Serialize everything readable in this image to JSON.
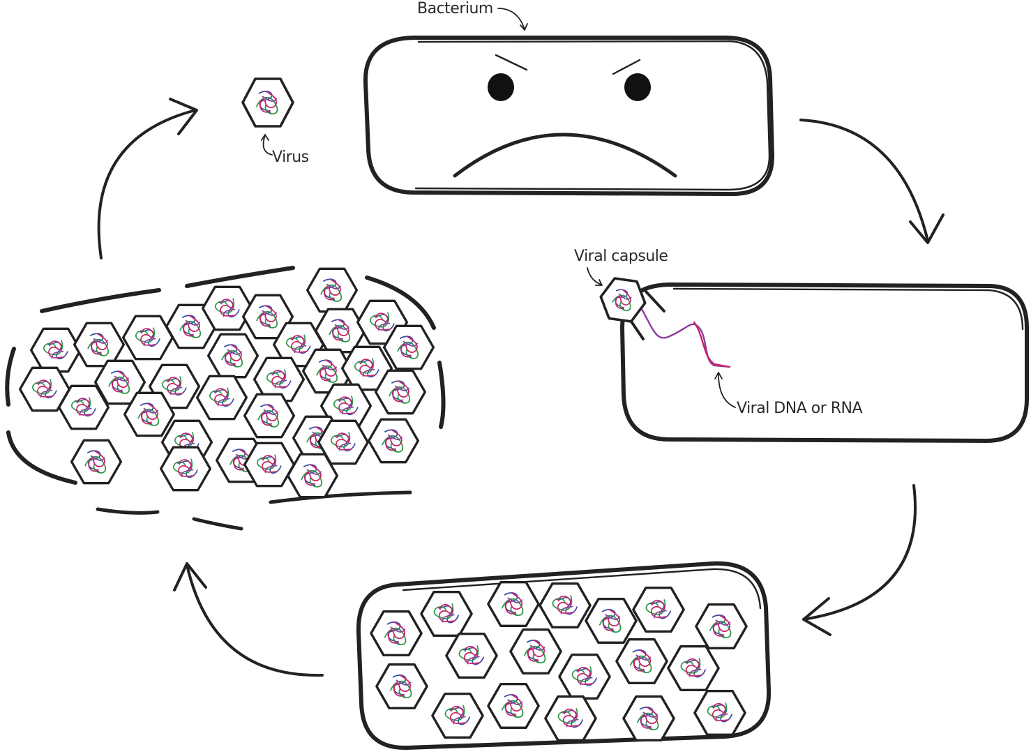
{
  "labels": {
    "bacterium": "Bacterium",
    "virus": "Virus",
    "viral_capsule": "Viral capsule",
    "viral_genome": "Viral DNA or RNA"
  },
  "colors": {
    "ink": "#222222",
    "label": "#2a2a2a",
    "leader": "#666666",
    "genome_blue": "#3b4fa8",
    "genome_green": "#2f9a48",
    "genome_magenta": "#c8236a",
    "genome_purple": "#8a3d9c"
  },
  "icons": [
    "bacterium-face",
    "virus-hexagon",
    "cycle-arrow"
  ]
}
